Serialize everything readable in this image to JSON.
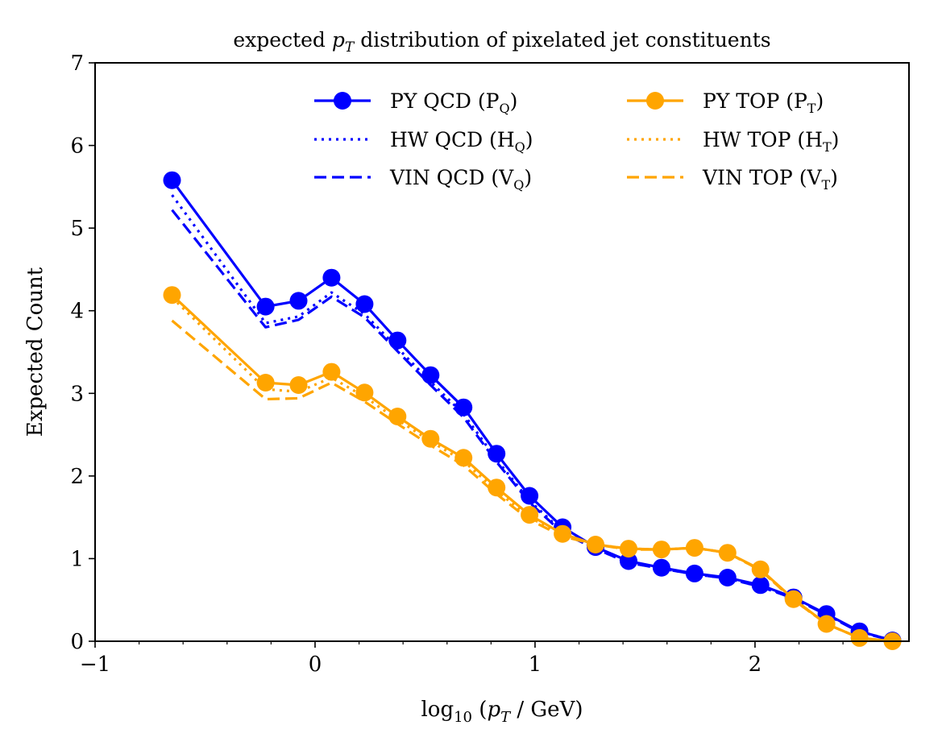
{
  "chart_data": {
    "type": "line",
    "title": "expected p_T distribution of pixelated jet constituents",
    "title_parts": {
      "before": "expected ",
      "var": "p",
      "var_sub": "T",
      "after": " distribution of pixelated jet constituents"
    },
    "xlabel": "log10 (p_T / GeV)",
    "xlabel_parts": {
      "func": "log",
      "func_sub": "10",
      "var": "p",
      "var_sub": "T",
      "unit": "GeV"
    },
    "ylabel": "Expected Count",
    "xlim": [
      -1.0,
      2.7
    ],
    "ylim": [
      0,
      7
    ],
    "xticks": [
      -1,
      0,
      1,
      2
    ],
    "xtick_labels": [
      "−1",
      "0",
      "1",
      "2"
    ],
    "xminor_step": 0.2,
    "yticks": [
      0,
      1,
      2,
      3,
      4,
      5,
      6,
      7
    ],
    "ytick_labels": [
      "0",
      "1",
      "2",
      "3",
      "4",
      "5",
      "6",
      "7"
    ],
    "legend_position": "top-right",
    "x": [
      -0.65,
      -0.225,
      -0.075,
      0.075,
      0.225,
      0.375,
      0.525,
      0.675,
      0.825,
      0.975,
      1.125,
      1.275,
      1.425,
      1.575,
      1.725,
      1.875,
      2.025,
      2.175,
      2.325,
      2.475,
      2.625
    ],
    "series": [
      {
        "name": "PY QCD",
        "sub": "Q",
        "letter": "P",
        "style": "solid-marker",
        "color": "#0000ff",
        "values": [
          5.58,
          4.05,
          4.12,
          4.4,
          4.08,
          3.64,
          3.22,
          2.83,
          2.27,
          1.76,
          1.38,
          1.14,
          0.97,
          0.89,
          0.82,
          0.77,
          0.68,
          0.53,
          0.33,
          0.12,
          0.01
        ]
      },
      {
        "name": "HW QCD",
        "sub": "Q",
        "letter": "H",
        "style": "dotted",
        "color": "#0000ff",
        "values": [
          5.4,
          3.85,
          3.93,
          4.22,
          3.96,
          3.55,
          3.14,
          2.75,
          2.2,
          1.7,
          1.33,
          1.12,
          0.95,
          0.88,
          0.81,
          0.76,
          0.66,
          0.53,
          0.32,
          0.12,
          0.01
        ]
      },
      {
        "name": "VIN QCD",
        "sub": "Q",
        "letter": "V",
        "style": "dashed",
        "color": "#0000ff",
        "values": [
          5.22,
          3.8,
          3.89,
          4.17,
          3.92,
          3.51,
          3.1,
          2.71,
          2.17,
          1.68,
          1.31,
          1.12,
          0.95,
          0.88,
          0.81,
          0.76,
          0.66,
          0.52,
          0.32,
          0.11,
          0.01
        ]
      },
      {
        "name": "PY TOP",
        "sub": "T",
        "letter": "P",
        "style": "solid-marker",
        "color": "#ffa500",
        "values": [
          4.19,
          3.13,
          3.1,
          3.26,
          3.01,
          2.72,
          2.45,
          2.22,
          1.86,
          1.53,
          1.3,
          1.17,
          1.12,
          1.11,
          1.13,
          1.07,
          0.87,
          0.51,
          0.21,
          0.04,
          0.0
        ]
      },
      {
        "name": "HW TOP",
        "sub": "T",
        "letter": "H",
        "style": "dotted",
        "color": "#ffa500",
        "values": [
          4.16,
          3.05,
          3.02,
          3.19,
          2.96,
          2.68,
          2.42,
          2.18,
          1.82,
          1.5,
          1.28,
          1.17,
          1.12,
          1.11,
          1.13,
          1.07,
          0.86,
          0.5,
          0.21,
          0.04,
          0.0
        ]
      },
      {
        "name": "VIN TOP",
        "sub": "T",
        "letter": "V",
        "style": "dashed",
        "color": "#ffa500",
        "values": [
          3.88,
          2.93,
          2.94,
          3.13,
          2.9,
          2.63,
          2.37,
          2.13,
          1.78,
          1.47,
          1.27,
          1.17,
          1.11,
          1.11,
          1.13,
          1.07,
          0.86,
          0.5,
          0.21,
          0.04,
          0.0
        ]
      }
    ]
  }
}
